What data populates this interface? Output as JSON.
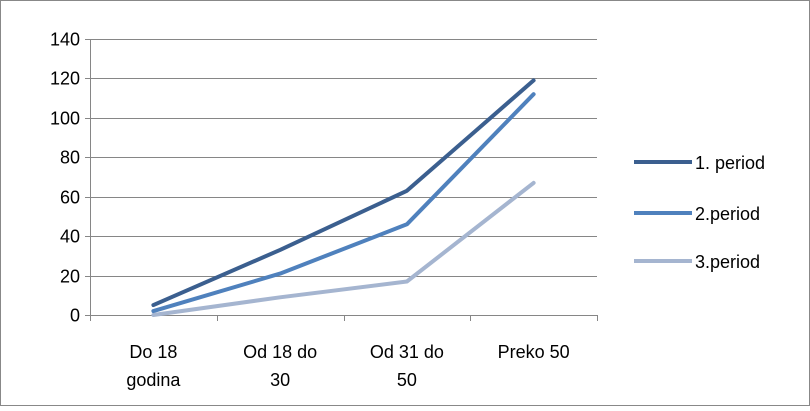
{
  "chart_data": {
    "type": "line",
    "categories": [
      [
        "Do 18",
        "godina"
      ],
      [
        "Od 18 do",
        "30"
      ],
      [
        "Od 31 do",
        "50"
      ],
      [
        "Preko 50"
      ]
    ],
    "series": [
      {
        "name": "1. period",
        "values": [
          5,
          33,
          63,
          119
        ],
        "color": "#3B5F8F"
      },
      {
        "name": "2.period",
        "values": [
          2,
          21,
          46,
          112
        ],
        "color": "#4F81BD"
      },
      {
        "name": "3.period",
        "values": [
          0,
          9,
          17,
          67
        ],
        "color": "#A5B5D0"
      }
    ],
    "ylim": [
      0,
      140
    ],
    "yticks": [
      0,
      20,
      40,
      60,
      80,
      100,
      120,
      140
    ],
    "grid": true,
    "legend": "right"
  }
}
